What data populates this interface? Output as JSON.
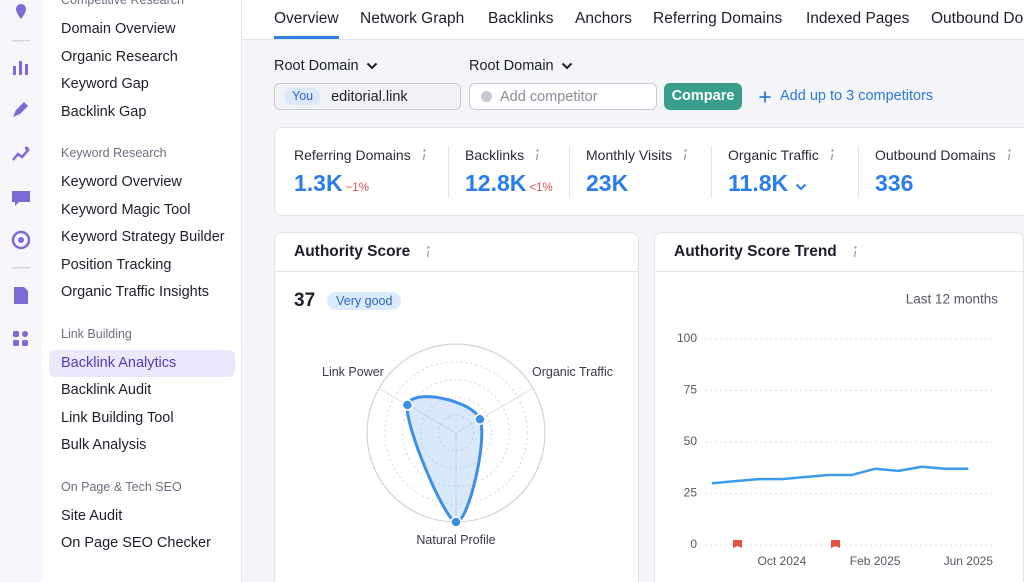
{
  "sidebar": {
    "sections": [
      {
        "title": "Competitive Research",
        "items": [
          "Domain Overview",
          "Organic Research",
          "Keyword Gap",
          "Backlink Gap"
        ]
      },
      {
        "title": "Keyword Research",
        "items": [
          "Keyword Overview",
          "Keyword Magic Tool",
          "Keyword Strategy Builder",
          "Position Tracking",
          "Organic Traffic Insights"
        ]
      },
      {
        "title": "Link Building",
        "items": [
          "Backlink Analytics",
          "Backlink Audit",
          "Link Building Tool",
          "Bulk Analysis"
        ]
      },
      {
        "title": "On Page & Tech SEO",
        "items": [
          "Site Audit",
          "On Page SEO Checker"
        ]
      }
    ],
    "active_section": 2,
    "active_item": 0
  },
  "tabs": [
    "Overview",
    "Network Graph",
    "Backlinks",
    "Anchors",
    "Referring Domains",
    "Indexed Pages",
    "Outbound Domains"
  ],
  "active_tab": 0,
  "controls": {
    "root_label_1": "Root Domain",
    "root_label_2": "Root Domain",
    "you_tag": "You",
    "domain": "editorial.link",
    "competitor_placeholder": "Add competitor",
    "compare": "Compare",
    "add_competitors": "Add up to 3 competitors"
  },
  "metrics": [
    {
      "label": "Referring Domains",
      "value": "1.3K",
      "change": "−1%"
    },
    {
      "label": "Backlinks",
      "value": "12.8K",
      "change": "<1%"
    },
    {
      "label": "Monthly Visits",
      "value": "23K"
    },
    {
      "label": "Organic Traffic",
      "value": "11.8K"
    },
    {
      "label": "Outbound Domains",
      "value": "336"
    }
  ],
  "chart_data": [
    {
      "type": "radar",
      "title": "Authority Score",
      "score": 37,
      "rating": "Very good",
      "axes": [
        "Link Power",
        "Organic Traffic",
        "Natural Profile"
      ],
      "values": [
        63,
        31,
        100
      ],
      "rlim": [
        0,
        100
      ],
      "color": "#3d8fe6"
    },
    {
      "type": "line",
      "title": "Authority Score Trend",
      "subtitle": "Last 12 months",
      "categories": [
        null,
        null,
        null,
        "Oct 2024",
        null,
        null,
        null,
        "Feb 2025",
        null,
        null,
        null,
        "Jun 2025"
      ],
      "values": [
        30,
        31,
        32,
        32,
        33,
        34,
        34,
        37,
        36,
        38,
        37,
        37
      ],
      "ylim": [
        0,
        100
      ],
      "yticks": [
        0,
        25,
        50,
        75,
        100
      ],
      "grid": true,
      "color": "#3d9be9"
    }
  ]
}
